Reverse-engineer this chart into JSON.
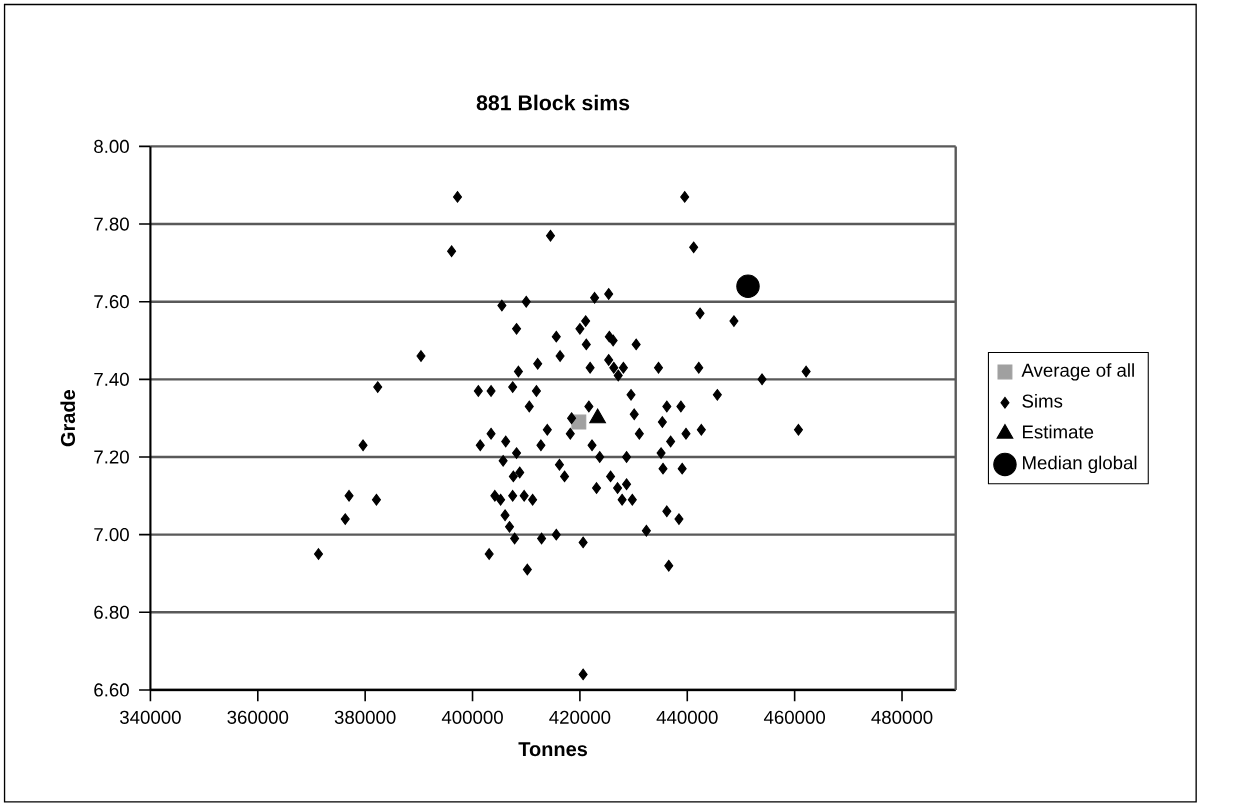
{
  "chart_data": {
    "type": "scatter",
    "title": "881 Block sims",
    "xlabel": "Tonnes",
    "ylabel": "Grade",
    "xlim": [
      340000,
      490000
    ],
    "xticks": [
      340000,
      360000,
      380000,
      400000,
      420000,
      440000,
      460000,
      480000
    ],
    "ylim": [
      6.6,
      8.0
    ],
    "yticks": [
      {
        "value": 6.6,
        "label": "6.60"
      },
      {
        "value": 6.8,
        "label": "6.80"
      },
      {
        "value": 7.0,
        "label": "7.00"
      },
      {
        "value": 7.2,
        "label": "7.20"
      },
      {
        "value": 7.4,
        "label": "7.40"
      },
      {
        "value": 7.6,
        "label": "7.60"
      },
      {
        "value": 7.8,
        "label": "7.80"
      },
      {
        "value": 8.0,
        "label": "8.00"
      }
    ],
    "grid": "y",
    "legend": "right",
    "series": [
      {
        "name": "Average of all",
        "color": "#a0a0a0",
        "marker": "square",
        "x": [
          419800
        ],
        "values": [
          7.29
        ]
      },
      {
        "name": "Sims",
        "color": "#000000",
        "marker": "diamond",
        "x": [
          397200,
          396100,
          405470,
          408200,
          390400,
          408550,
          382340,
          401080,
          403450,
          407480,
          410570,
          379610,
          401440,
          403450,
          406180,
          408200,
          405700,
          407600,
          408790,
          377000,
          382100,
          376290,
          404160,
          405230,
          407480,
          409620,
          406060,
          406890,
          407840,
          371310,
          403100,
          410210,
          410000,
          439520,
          414520,
          441190,
          422740,
          425360,
          442380,
          448690,
          421070,
          420000,
          415600,
          421190,
          425480,
          426190,
          430480,
          416310,
          412140,
          421900,
          425360,
          426310,
          428100,
          427140,
          434640,
          442140,
          453930,
          462140,
          411900,
          429520,
          445600,
          418450,
          421670,
          430120,
          436190,
          438810,
          435360,
          413930,
          418210,
          431070,
          439760,
          442620,
          460710,
          412740,
          422260,
          436900,
          435120,
          423690,
          428690,
          416190,
          417140,
          435480,
          439050,
          425710,
          423100,
          427020,
          428690,
          427860,
          429760,
          411190,
          436190,
          438450,
          432380,
          412860,
          415600,
          420600,
          436550,
          420600
        ],
        "values": [
          7.87,
          7.73,
          7.59,
          7.53,
          7.46,
          7.42,
          7.38,
          7.37,
          7.37,
          7.38,
          7.33,
          7.23,
          7.23,
          7.26,
          7.24,
          7.21,
          7.19,
          7.15,
          7.16,
          7.1,
          7.09,
          7.04,
          7.1,
          7.09,
          7.1,
          7.1,
          7.05,
          7.02,
          6.99,
          6.95,
          6.95,
          6.91,
          7.6,
          7.87,
          7.77,
          7.74,
          7.61,
          7.62,
          7.57,
          7.55,
          7.55,
          7.53,
          7.51,
          7.49,
          7.51,
          7.5,
          7.49,
          7.46,
          7.44,
          7.43,
          7.45,
          7.43,
          7.43,
          7.41,
          7.43,
          7.43,
          7.4,
          7.42,
          7.37,
          7.36,
          7.36,
          7.3,
          7.33,
          7.31,
          7.33,
          7.33,
          7.29,
          7.27,
          7.26,
          7.26,
          7.26,
          7.27,
          7.27,
          7.23,
          7.23,
          7.24,
          7.21,
          7.2,
          7.2,
          7.18,
          7.15,
          7.17,
          7.17,
          7.15,
          7.12,
          7.12,
          7.13,
          7.09,
          7.09,
          7.09,
          7.06,
          7.04,
          7.01,
          6.99,
          7.0,
          6.98,
          6.92,
          6.64
        ]
      },
      {
        "name": "Estimate",
        "color": "#000000",
        "marker": "triangle",
        "x": [
          423300
        ],
        "values": [
          7.3
        ]
      },
      {
        "name": "Median global",
        "color": "#000000",
        "marker": "circle",
        "x": [
          451310
        ],
        "values": [
          7.64
        ]
      }
    ]
  }
}
